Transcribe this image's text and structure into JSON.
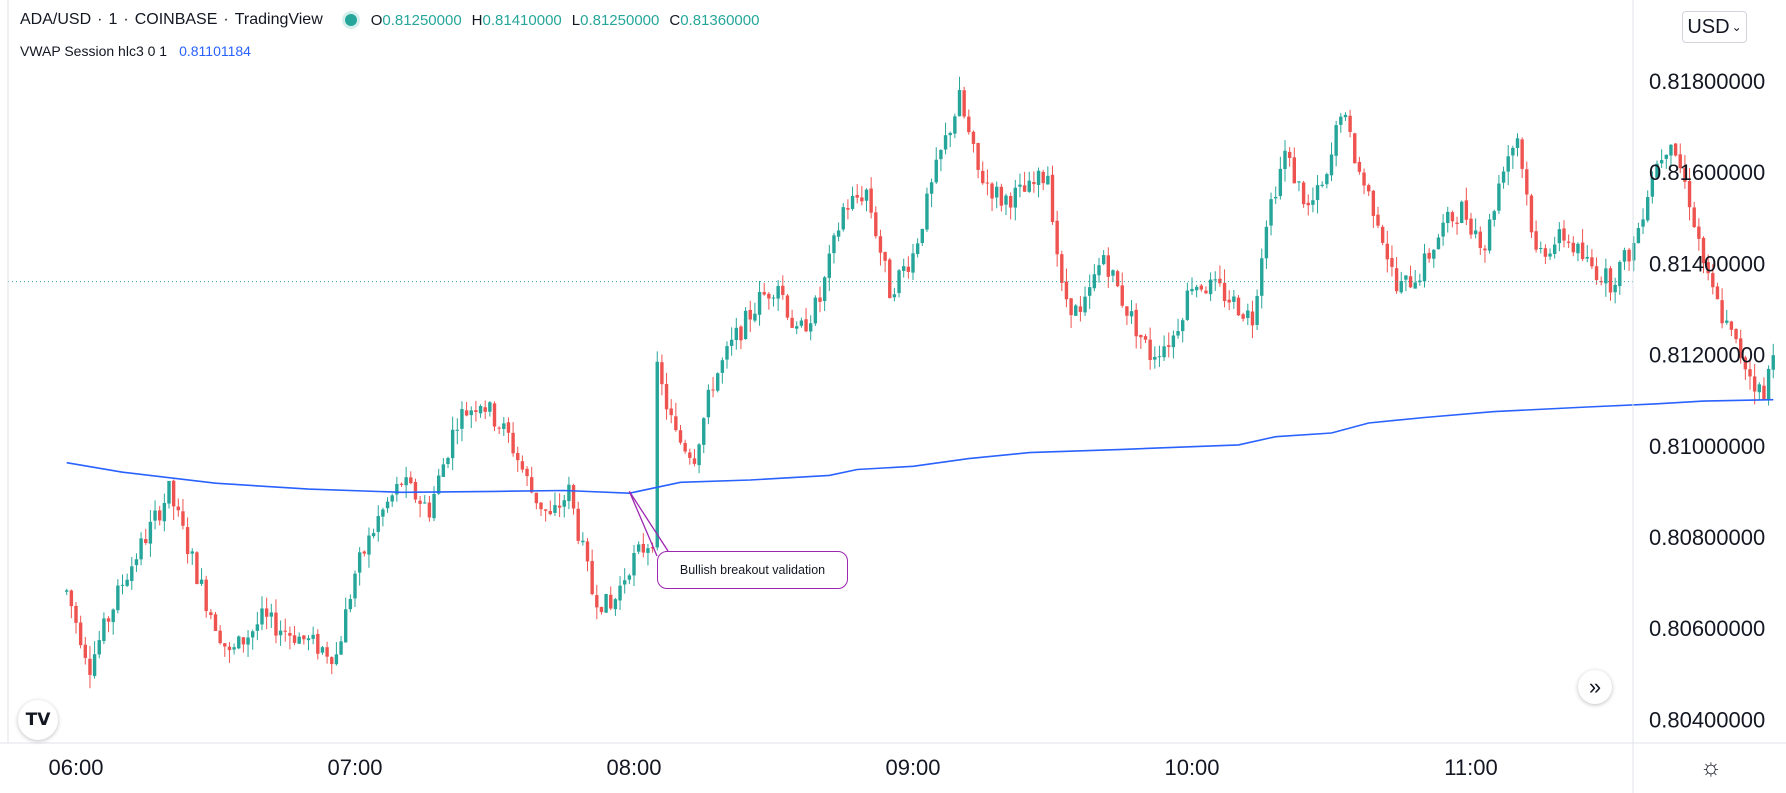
{
  "header": {
    "symbol": "ADA/USD",
    "interval": "1",
    "exchange": "COINBASE",
    "platform": "TradingView",
    "open_label": "O",
    "open": "0.81250000",
    "high_label": "H",
    "high": "0.81410000",
    "low_label": "L",
    "low": "0.81250000",
    "close_label": "C",
    "close": "0.81360000"
  },
  "indicator": {
    "label": "VWAP Session hlc3 0 1",
    "value": "0.81101184"
  },
  "currency_button": "USD",
  "logo_text": "TV",
  "annotation": "Bullish breakout validation",
  "colors": {
    "up": "#26a69a",
    "down": "#ef5350",
    "vwap": "#2962ff",
    "annotation": "#9c27b0",
    "axis_text": "#131722"
  },
  "chart_data": {
    "type": "candlestick",
    "symbol": "ADA/USD",
    "x_tick_labels": [
      "06:00",
      "07:00",
      "08:00",
      "09:00",
      "10:00",
      "11:00"
    ],
    "y_tick_labels": [
      "0.81800000",
      "0.81600000",
      "0.81400000",
      "0.81200000",
      "0.81000000",
      "0.80800000",
      "0.80600000",
      "0.80400000"
    ],
    "ylim": [
      0.8035,
      0.8185
    ],
    "last_price": 0.8136,
    "price_path": [
      [
        "05:58",
        0.8068
      ],
      [
        "06:03",
        0.8052
      ],
      [
        "06:10",
        0.807
      ],
      [
        "06:20",
        0.809
      ],
      [
        "06:28",
        0.8066
      ],
      [
        "06:33",
        0.8054
      ],
      [
        "06:40",
        0.8062
      ],
      [
        "06:48",
        0.8058
      ],
      [
        "06:56",
        0.8054
      ],
      [
        "07:00",
        0.8072
      ],
      [
        "07:05",
        0.8084
      ],
      [
        "07:10",
        0.8092
      ],
      [
        "07:16",
        0.8086
      ],
      [
        "07:22",
        0.8106
      ],
      [
        "07:27",
        0.811
      ],
      [
        "07:33",
        0.8102
      ],
      [
        "07:38",
        0.809
      ],
      [
        "07:42",
        0.8084
      ],
      [
        "07:46",
        0.809
      ],
      [
        "07:51",
        0.8068
      ],
      [
        "07:55",
        0.8064
      ],
      [
        "07:59",
        0.8074
      ],
      [
        "08:04",
        0.808
      ],
      [
        "08:05",
        0.8116
      ],
      [
        "08:09",
        0.8102
      ],
      [
        "08:13",
        0.8098
      ],
      [
        "08:17",
        0.8114
      ],
      [
        "08:22",
        0.8124
      ],
      [
        "08:27",
        0.8132
      ],
      [
        "08:31",
        0.8136
      ],
      [
        "08:35",
        0.8124
      ],
      [
        "08:40",
        0.8132
      ],
      [
        "08:45",
        0.8152
      ],
      [
        "08:50",
        0.8156
      ],
      [
        "08:55",
        0.8134
      ],
      [
        "09:00",
        0.8142
      ],
      [
        "09:06",
        0.8164
      ],
      [
        "09:10",
        0.8176
      ],
      [
        "09:14",
        0.816
      ],
      [
        "09:19",
        0.8154
      ],
      [
        "09:25",
        0.8156
      ],
      [
        "09:29",
        0.816
      ],
      [
        "09:32",
        0.8134
      ],
      [
        "09:36",
        0.8128
      ],
      [
        "09:41",
        0.8142
      ],
      [
        "09:45",
        0.8132
      ],
      [
        "09:51",
        0.812
      ],
      [
        "09:56",
        0.8124
      ],
      [
        "10:00",
        0.8136
      ],
      [
        "10:06",
        0.8134
      ],
      [
        "10:13",
        0.8128
      ],
      [
        "10:16",
        0.815
      ],
      [
        "10:20",
        0.8164
      ],
      [
        "10:25",
        0.8152
      ],
      [
        "10:29",
        0.8158
      ],
      [
        "10:32",
        0.8174
      ],
      [
        "10:36",
        0.816
      ],
      [
        "10:40",
        0.815
      ],
      [
        "10:44",
        0.8134
      ],
      [
        "10:49",
        0.8138
      ],
      [
        "10:54",
        0.8148
      ],
      [
        "10:58",
        0.8152
      ],
      [
        "11:03",
        0.8144
      ],
      [
        "11:07",
        0.8162
      ],
      [
        "11:10",
        0.8168
      ],
      [
        "11:14",
        0.8142
      ],
      [
        "11:20",
        0.8146
      ],
      [
        "11:25",
        0.814
      ],
      [
        "11:30",
        0.8136
      ],
      [
        "11:35",
        0.8144
      ],
      [
        "11:39",
        0.816
      ],
      [
        "11:43",
        0.8168
      ],
      [
        "11:47",
        0.8154
      ],
      [
        "11:51",
        0.8136
      ],
      [
        "11:55",
        0.8126
      ],
      [
        "11:59",
        0.8118
      ],
      [
        "12:03",
        0.811
      ],
      [
        "12:05",
        0.8122
      ]
    ],
    "series": [
      {
        "name": "VWAP Session hlc3 0 1",
        "points": [
          [
            "05:58",
            0.80963
          ],
          [
            "06:10",
            0.80942
          ],
          [
            "06:30",
            0.80918
          ],
          [
            "06:50",
            0.80905
          ],
          [
            "07:10",
            0.80898
          ],
          [
            "07:30",
            0.809
          ],
          [
            "07:45",
            0.80902
          ],
          [
            "07:59",
            0.80896
          ],
          [
            "08:10",
            0.8092
          ],
          [
            "08:25",
            0.80925
          ],
          [
            "08:42",
            0.80935
          ],
          [
            "08:48",
            0.80948
          ],
          [
            "09:00",
            0.80955
          ],
          [
            "09:12",
            0.80972
          ],
          [
            "09:25",
            0.80985
          ],
          [
            "09:45",
            0.80992
          ],
          [
            "10:00",
            0.80998
          ],
          [
            "10:10",
            0.81002
          ],
          [
            "10:18",
            0.8102
          ],
          [
            "10:30",
            0.81028
          ],
          [
            "10:38",
            0.8105
          ],
          [
            "10:50",
            0.81062
          ],
          [
            "11:05",
            0.81075
          ],
          [
            "11:25",
            0.81085
          ],
          [
            "11:40",
            0.81092
          ],
          [
            "11:50",
            0.81098
          ],
          [
            "12:05",
            0.81101
          ]
        ]
      }
    ],
    "annotations": [
      {
        "text": "Bullish breakout validation",
        "time": "07:59",
        "price": 0.809
      }
    ]
  }
}
